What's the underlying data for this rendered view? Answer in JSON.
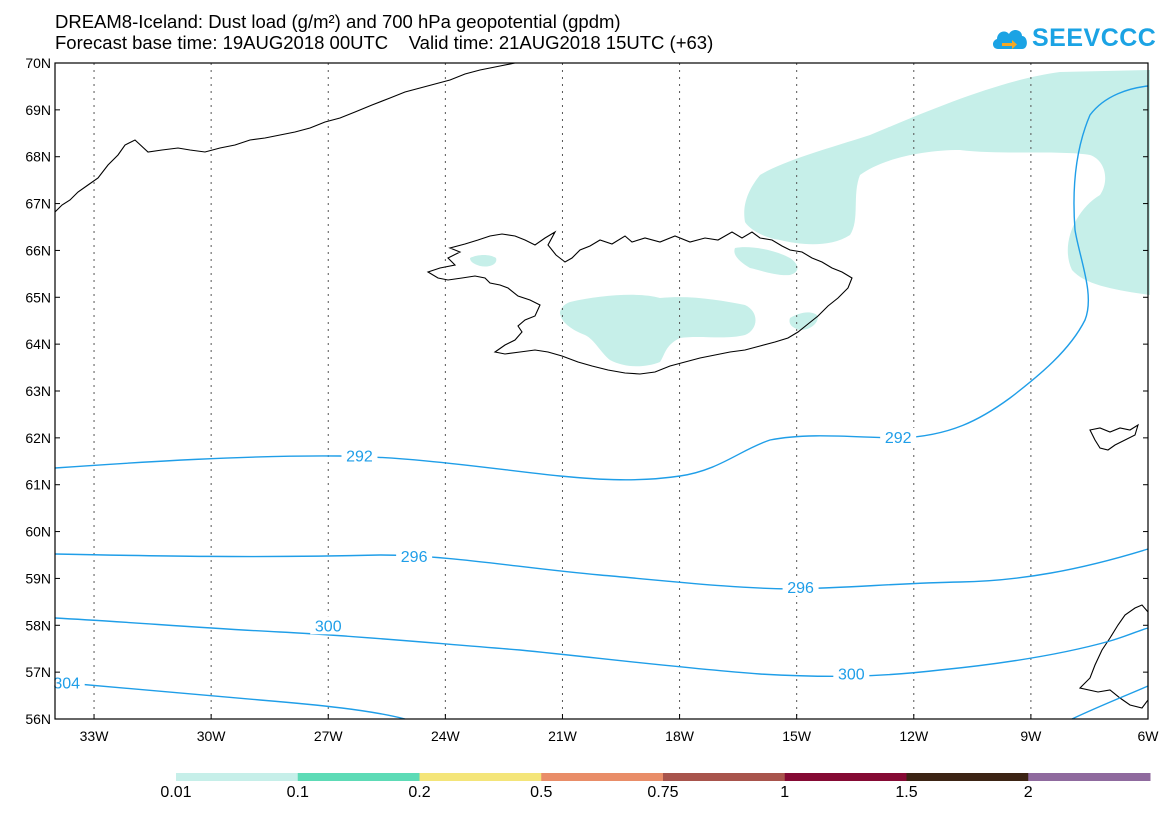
{
  "header": {
    "title_line1": "DREAM8-Iceland: Dust load (g/m²) and 700 hPa geopotential (gpdm)",
    "title_line2": "Forecast base time: 19AUG2018 00UTC    Valid time: 21AUG2018 15UTC (+63)"
  },
  "logo": {
    "text": "SEEVCCC",
    "icon": "cloud-icon",
    "color": "#1ba3e4"
  },
  "map": {
    "lon_labels": [
      "33W",
      "30W",
      "27W",
      "24W",
      "21W",
      "18W",
      "15W",
      "12W",
      "9W",
      "6W"
    ],
    "lon_values": [
      -33,
      -30,
      -27,
      -24,
      -21,
      -18,
      -15,
      -12,
      -9,
      -6
    ],
    "lat_labels": [
      "70N",
      "69N",
      "68N",
      "67N",
      "66N",
      "65N",
      "64N",
      "63N",
      "62N",
      "61N",
      "60N",
      "59N",
      "58N",
      "57N",
      "56N"
    ],
    "lat_values": [
      70,
      69,
      68,
      67,
      66,
      65,
      64,
      63,
      62,
      61,
      60,
      59,
      58,
      57,
      56
    ],
    "lon_range": [
      -34,
      -6
    ],
    "lat_range": [
      56,
      70
    ],
    "grid": "dotted",
    "contour_color": "#1f9ee8",
    "contours": [
      {
        "label": "292",
        "label_positions": [
          [
            -26.2,
            61.62
          ],
          [
            -12.4,
            62.02
          ]
        ]
      },
      {
        "label": "296",
        "label_positions": [
          [
            -24.8,
            59.48
          ],
          [
            -14.9,
            58.82
          ]
        ]
      },
      {
        "label": "300",
        "label_positions": [
          [
            -27,
            58.0
          ],
          [
            -13.6,
            56.97
          ]
        ]
      },
      {
        "label": "304",
        "label_positions": [
          [
            -33.7,
            56.78
          ]
        ]
      }
    ]
  },
  "colorbar": {
    "labels": [
      "0.01",
      "0.1",
      "0.2",
      "0.5",
      "0.75",
      "1",
      "1.5",
      "2"
    ],
    "colors": [
      "#c6efe9",
      "#5ddbb6",
      "#f4e579",
      "#e98d68",
      "#a8544c",
      "#850a34",
      "#3c2414",
      "#8f6a9e"
    ]
  }
}
